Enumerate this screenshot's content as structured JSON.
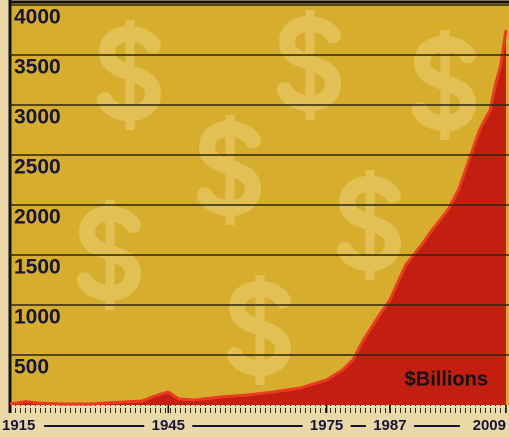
{
  "chart_data": {
    "type": "area",
    "annotation": "$Billions",
    "x": [
      1915,
      1918,
      1920,
      1925,
      1930,
      1935,
      1940,
      1943,
      1945,
      1947,
      1950,
      1955,
      1960,
      1965,
      1970,
      1975,
      1978,
      1980,
      1982,
      1985,
      1987,
      1990,
      1993,
      1995,
      1998,
      2000,
      2002,
      2004,
      2006,
      2007,
      2008,
      2009
    ],
    "values": [
      10,
      35,
      20,
      10,
      10,
      25,
      40,
      100,
      130,
      60,
      50,
      80,
      100,
      130,
      170,
      250,
      350,
      450,
      650,
      900,
      1050,
      1400,
      1600,
      1750,
      1950,
      2150,
      2450,
      2750,
      2950,
      3200,
      3400,
      3750
    ],
    "color": "#c21f10",
    "xlim": [
      1915,
      2009
    ],
    "xticks": [
      1915,
      1945,
      1975,
      1987,
      2009
    ],
    "ylim": [
      0,
      4000
    ],
    "yticks": [
      500,
      1000,
      1500,
      2000,
      2500,
      3000,
      3500,
      4000
    ],
    "grid": true
  }
}
